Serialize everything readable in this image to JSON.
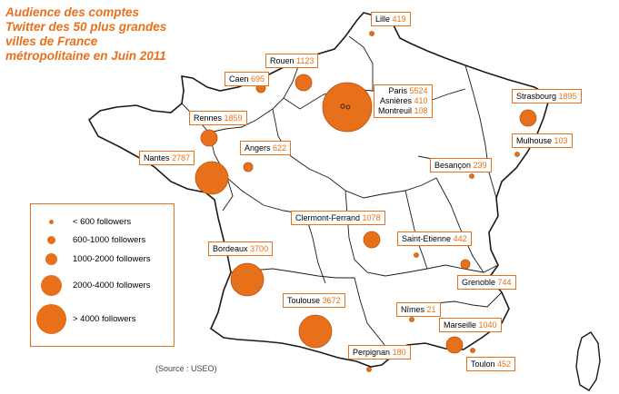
{
  "title": {
    "lines": [
      "Audience des comptes",
      "Twitter des 50 plus grandes",
      "villes de France",
      "métropolitaine en Juin 2011"
    ]
  },
  "colors": {
    "accent": "#e8701a",
    "map_line": "#1a1a1a",
    "map_fill": "#ffffff"
  },
  "cities": [
    {
      "id": "lille",
      "name": "Lille",
      "value": "419",
      "followers": 419
    },
    {
      "id": "rouen",
      "name": "Rouen",
      "value": "1123",
      "followers": 1123
    },
    {
      "id": "caen",
      "name": "Caen",
      "value": "695",
      "followers": 695
    },
    {
      "id": "paris",
      "name": "Paris",
      "value": "5524",
      "followers": 5524
    },
    {
      "id": "asnieres",
      "name": "Asnières",
      "value": "410",
      "followers": 410
    },
    {
      "id": "montreuil",
      "name": "Montreuil",
      "value": "108",
      "followers": 108
    },
    {
      "id": "strasbourg",
      "name": "Strasbourg",
      "value": "1895",
      "followers": 1895
    },
    {
      "id": "mulhouse",
      "name": "Mulhouse",
      "value": "103",
      "followers": 103
    },
    {
      "id": "rennes",
      "name": "Rennes",
      "value": "1859",
      "followers": 1859
    },
    {
      "id": "angers",
      "name": "Angers",
      "value": "622",
      "followers": 622
    },
    {
      "id": "nantes",
      "name": "Nantes",
      "value": "2787",
      "followers": 2787
    },
    {
      "id": "besancon",
      "name": "Besançon",
      "value": "239",
      "followers": 239
    },
    {
      "id": "clermont",
      "name": "Clermont-Ferrand",
      "value": "1078",
      "followers": 1078
    },
    {
      "id": "saint-etienne",
      "name": "Saint-Etienne",
      "value": "442",
      "followers": 442
    },
    {
      "id": "bordeaux",
      "name": "Bordeaux",
      "value": "3700",
      "followers": 3700
    },
    {
      "id": "grenoble",
      "name": "Grenoble",
      "value": "744",
      "followers": 744
    },
    {
      "id": "toulouse",
      "name": "Toulouse",
      "value": "3672",
      "followers": 3672
    },
    {
      "id": "nimes",
      "name": "Nîmes",
      "value": "21",
      "followers": 21
    },
    {
      "id": "marseille",
      "name": "Marseille",
      "value": "1040",
      "followers": 1040
    },
    {
      "id": "perpignan",
      "name": "Perpignan",
      "value": "180",
      "followers": 180
    },
    {
      "id": "toulon",
      "name": "Toulon",
      "value": "452",
      "followers": 452
    }
  ],
  "legend": {
    "items": [
      {
        "label": "< 600 followers"
      },
      {
        "label": "600-1000 followers"
      },
      {
        "label": "1000-2000 followers"
      },
      {
        "label": "2000-4000 followers"
      },
      {
        "label": "> 4000 followers"
      }
    ]
  },
  "source": "(Source : USEO)"
}
